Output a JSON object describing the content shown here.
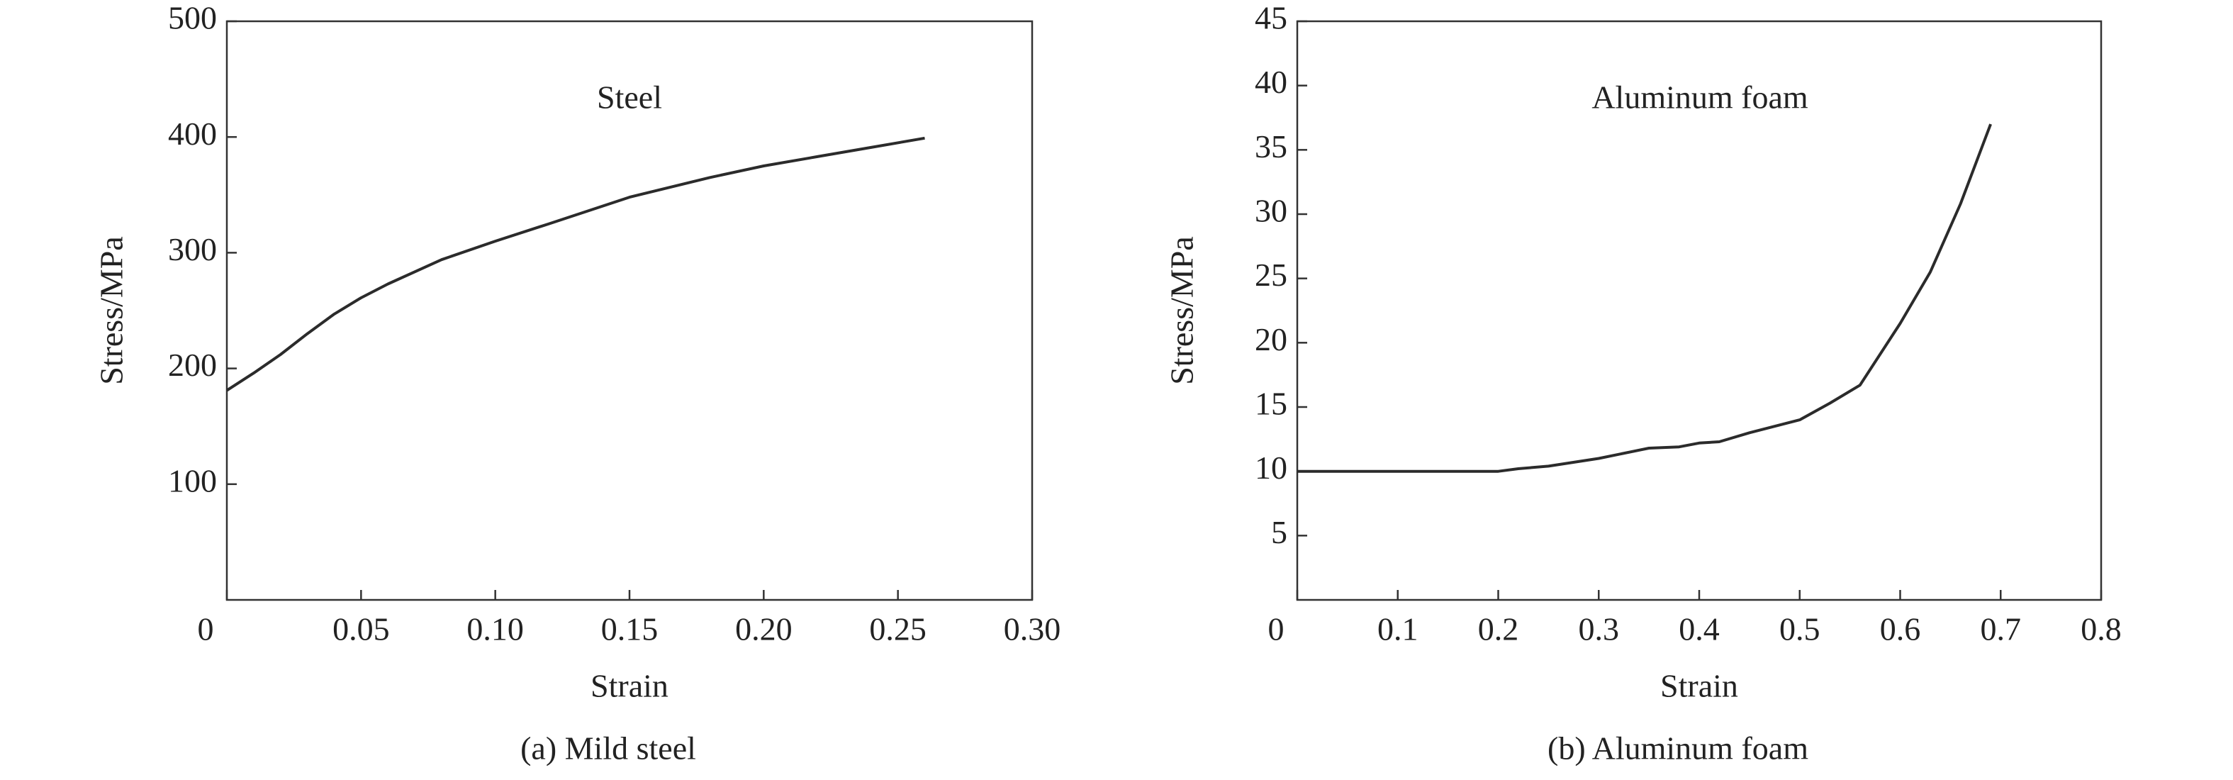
{
  "chart_data": [
    {
      "type": "line",
      "caption": "(a) Mild steel",
      "annotation": "Steel",
      "x_label": "Strain",
      "y_label": "Stress/MPa",
      "x": [
        0,
        0.01,
        0.02,
        0.03,
        0.04,
        0.05,
        0.06,
        0.08,
        0.1,
        0.12,
        0.15,
        0.18,
        0.2,
        0.22,
        0.24,
        0.26
      ],
      "values": [
        181,
        196,
        212,
        230,
        247,
        261,
        273,
        294,
        310,
        325,
        348,
        365,
        375,
        383,
        391,
        399
      ],
      "color": "#2b2b2b",
      "xlim": [
        0,
        0.3
      ],
      "xticks": [
        0,
        0.05,
        {
          "value": 0.1,
          "label": "0.10"
        },
        0.15,
        {
          "value": 0.2,
          "label": "0.20"
        },
        0.25,
        {
          "value": 0.3,
          "label": "0.30"
        }
      ],
      "ylim": [
        0,
        500
      ],
      "yticks": [
        100,
        200,
        300,
        400,
        500
      ]
    },
    {
      "type": "line",
      "caption": "(b) Aluminum foam",
      "annotation": "Aluminum foam",
      "x_label": "Strain",
      "y_label": "Stress/MPa",
      "x": [
        0,
        0.1,
        0.2,
        0.22,
        0.25,
        0.3,
        0.35,
        0.38,
        0.4,
        0.42,
        0.45,
        0.5,
        0.53,
        0.56,
        0.6,
        0.63,
        0.66,
        0.69
      ],
      "values": [
        10,
        10,
        10,
        10.2,
        10.4,
        11.0,
        11.8,
        11.9,
        12.2,
        12.3,
        13.0,
        14.0,
        15.3,
        16.7,
        21.5,
        25.5,
        30.8,
        37.0
      ],
      "color": "#2b2b2b",
      "xlim": [
        0,
        0.8
      ],
      "xticks": [
        0,
        0.1,
        0.2,
        0.3,
        0.4,
        0.5,
        0.6,
        0.7,
        0.8
      ],
      "ylim": [
        0,
        45
      ],
      "yticks": [
        5,
        10,
        15,
        20,
        25,
        30,
        35,
        40,
        45
      ]
    }
  ]
}
